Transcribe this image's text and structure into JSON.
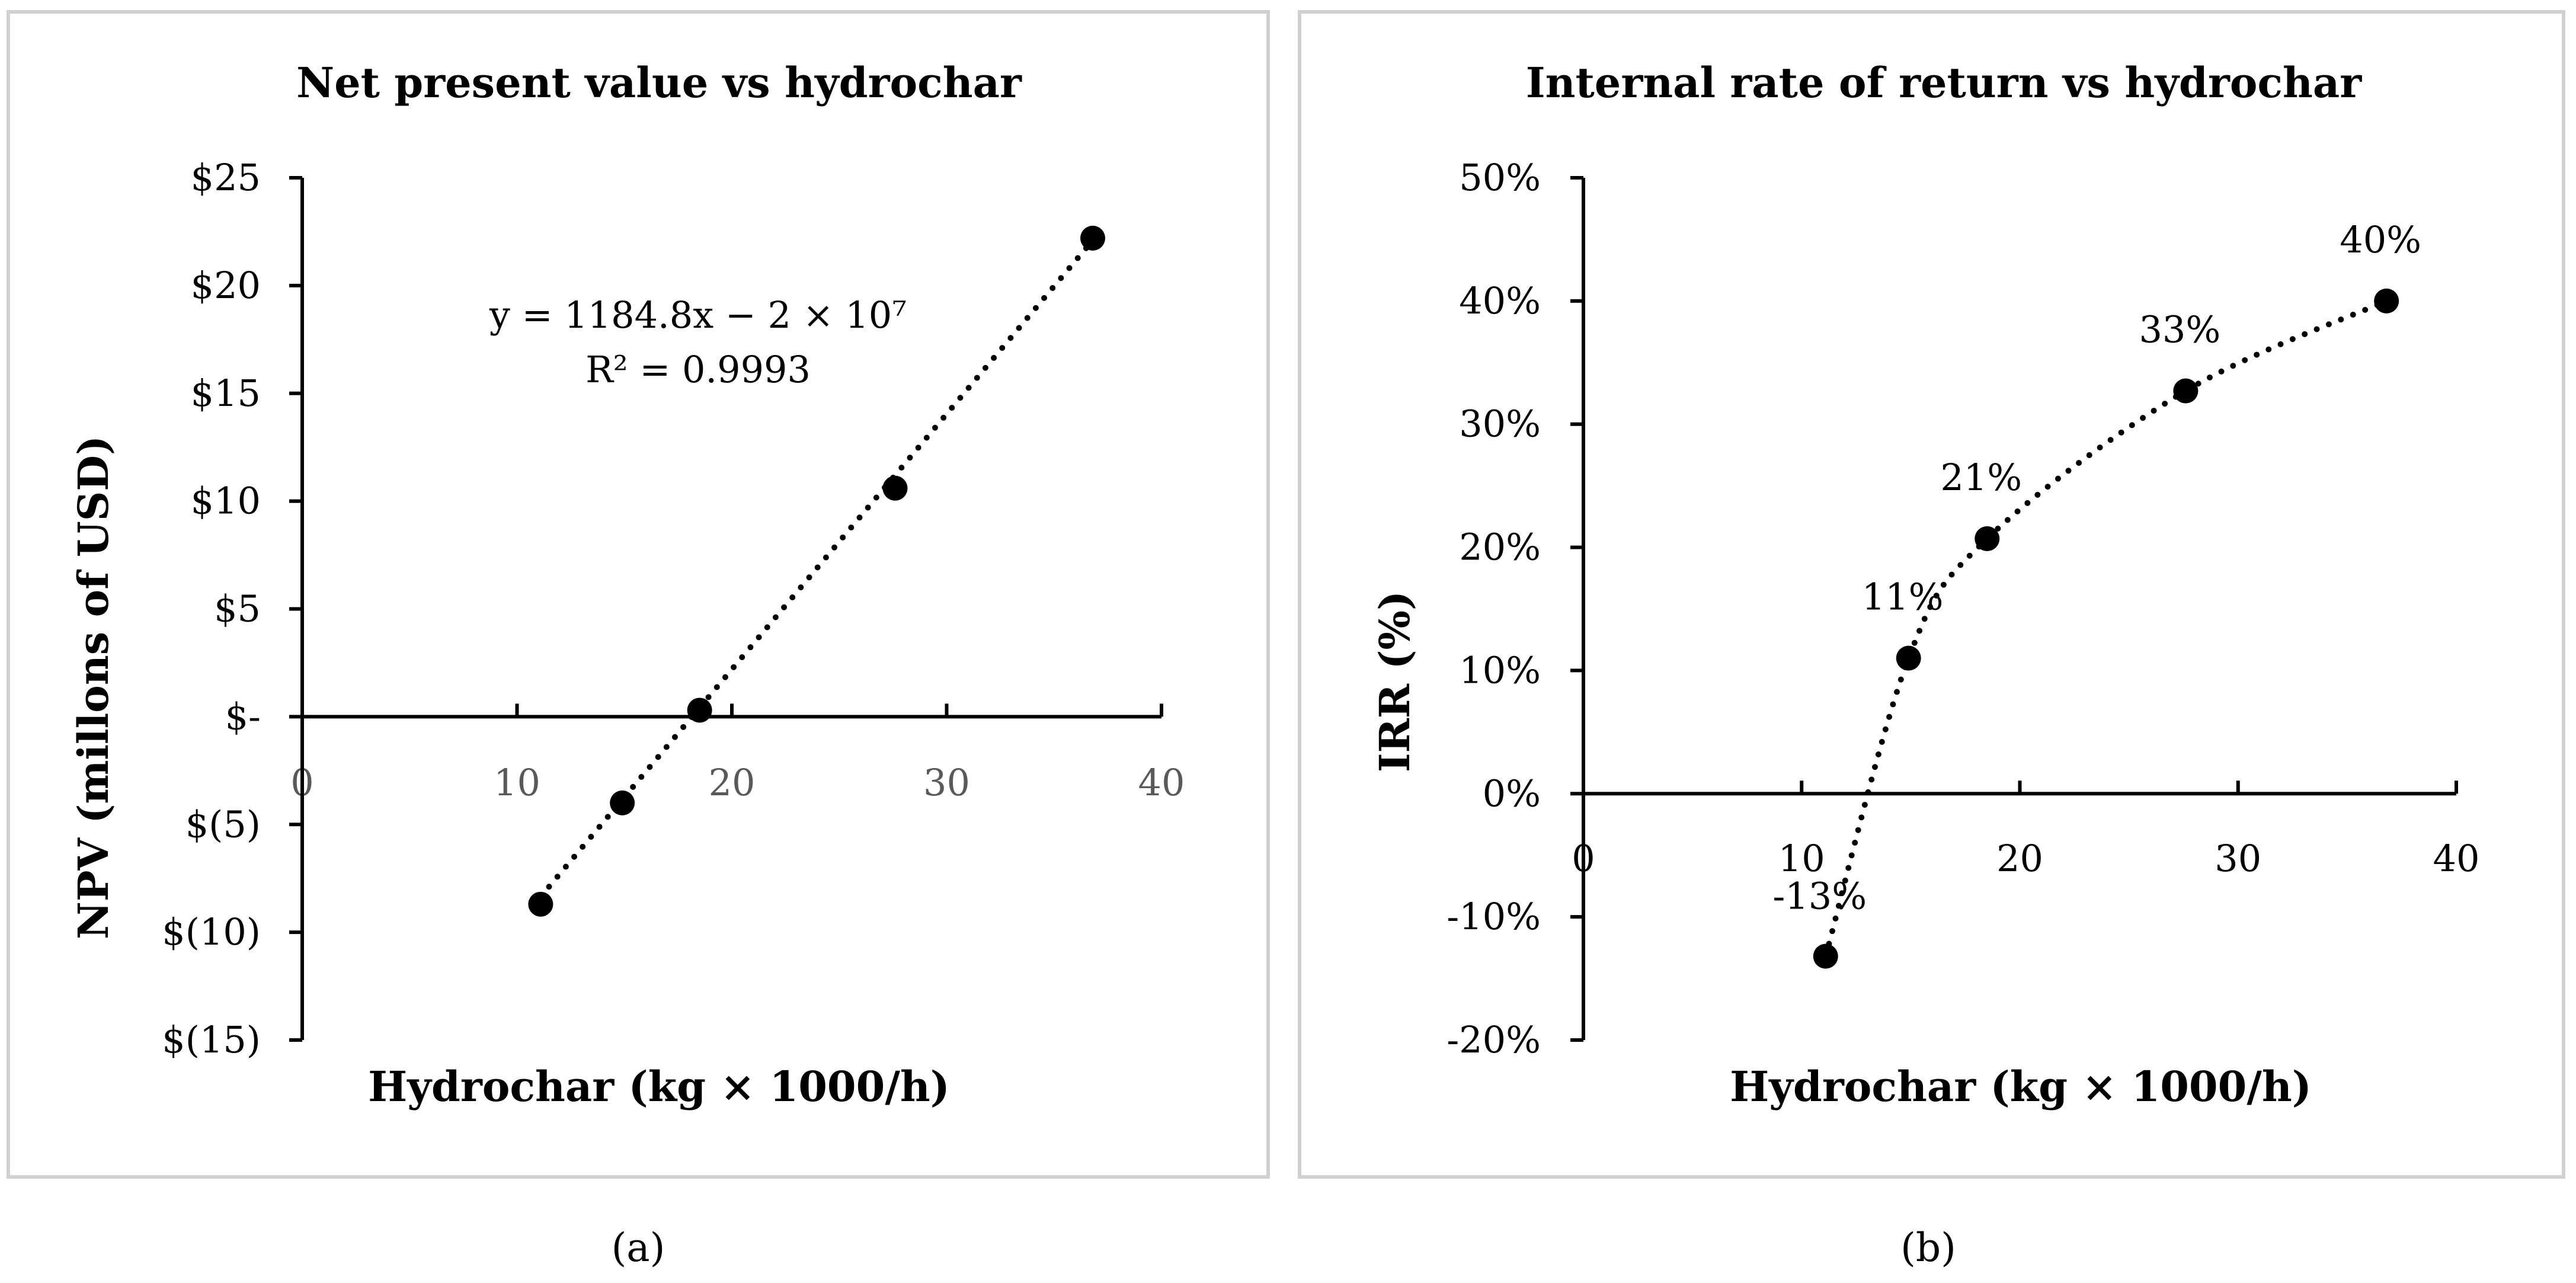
{
  "chart_data": [
    {
      "panel": "a",
      "type": "scatter",
      "title": "Net present value vs hydrochar",
      "xlabel": "Hydrochar (kg × 1000/h)",
      "ylabel": "NPV (millons of USD)",
      "xlim": [
        0,
        40
      ],
      "ylim": [
        -15,
        25
      ],
      "x_ticks": [
        0,
        10,
        20,
        30,
        40
      ],
      "x_tick_labels": [
        "0",
        "10",
        "20",
        "30",
        "40"
      ],
      "y_ticks": [
        -15,
        -10,
        -5,
        0,
        5,
        10,
        15,
        20,
        25
      ],
      "y_tick_labels": [
        "$(15)",
        "$(10)",
        "$(5)",
        "$-",
        "$5",
        "$10",
        "$15",
        "$20",
        "$25"
      ],
      "series": [
        {
          "name": "NPV",
          "x": [
            11.1,
            14.9,
            18.5,
            27.6,
            36.8
          ],
          "y": [
            -8.7,
            -4.0,
            0.3,
            10.6,
            22.2
          ]
        }
      ],
      "trendline": {
        "type": "linear",
        "slope": 1.1848,
        "intercept": -21.5
      },
      "equation": "y = 1184.8x − 2 × 10⁷",
      "r_squared": "R² = 0.9993",
      "caption": "(a)",
      "grid": false,
      "legend": "none"
    },
    {
      "panel": "b",
      "type": "scatter",
      "title": "Internal rate of return vs hydrochar",
      "xlabel": "Hydrochar (kg × 1000/h)",
      "ylabel": "IRR (%)",
      "xlim": [
        0,
        40
      ],
      "ylim": [
        -20,
        50
      ],
      "x_ticks": [
        0,
        10,
        20,
        30,
        40
      ],
      "x_tick_labels": [
        "0",
        "10",
        "20",
        "30",
        "40"
      ],
      "y_ticks": [
        -20,
        -10,
        0,
        10,
        20,
        30,
        40,
        50
      ],
      "y_tick_labels": [
        "-20%",
        "-10%",
        "0%",
        "10%",
        "20%",
        "30%",
        "40%",
        "50%"
      ],
      "series": [
        {
          "name": "IRR",
          "x": [
            11.1,
            14.9,
            18.5,
            27.6,
            36.8
          ],
          "y": [
            -13.2,
            11.0,
            20.7,
            32.7,
            40.0
          ],
          "data_labels": [
            "-13%",
            "11%",
            "21%",
            "33%",
            "40%"
          ]
        }
      ],
      "trendline": {
        "type": "polynomial"
      },
      "caption": "(b)",
      "grid": false,
      "legend": "none"
    }
  ]
}
